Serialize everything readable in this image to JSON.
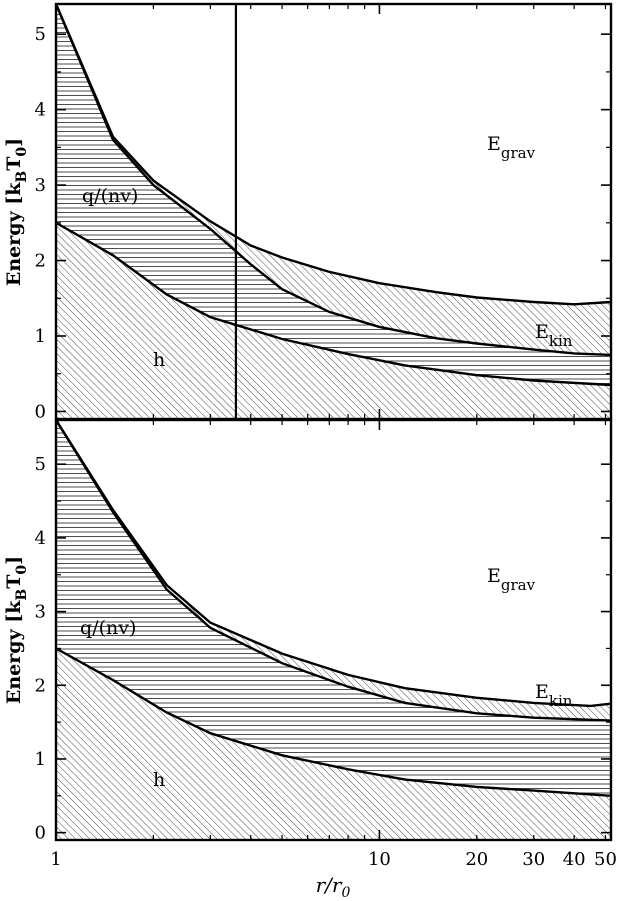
{
  "chart_data": [
    {
      "type": "area",
      "panel": "top",
      "ylabel": "Energy [kBT0]",
      "ylabel_parts": {
        "main": "Energy [k",
        "sub1": "B",
        "mid": "T",
        "sub2": "0",
        "end": "]"
      },
      "xscale": "log",
      "xlim": [
        1,
        52
      ],
      "ylim": [
        -0.1,
        5.4
      ],
      "yticks": [
        0,
        1,
        2,
        3,
        4,
        5
      ],
      "ytick_labels": [
        "0",
        "1",
        "2",
        "3",
        "4",
        "5"
      ],
      "vertical_line_x": 3.6,
      "labels": {
        "h": "h",
        "q": "q/(nv)",
        "ekin": {
          "main": "E",
          "sub": "kin"
        },
        "egrav": {
          "main": "E",
          "sub": "grav"
        }
      },
      "series": [
        {
          "key": "h",
          "x": [
            1,
            1.5,
            2.2,
            3,
            5,
            8,
            12,
            20,
            30,
            52
          ],
          "values": [
            2.5,
            2.07,
            1.55,
            1.25,
            0.96,
            0.76,
            0.61,
            0.48,
            0.41,
            0.35
          ]
        },
        {
          "key": "q",
          "x": [
            1,
            1.5,
            2,
            3,
            4,
            5,
            7,
            10,
            15,
            20,
            30,
            40,
            52
          ],
          "values": [
            5.4,
            3.6,
            3.0,
            2.42,
            1.95,
            1.62,
            1.32,
            1.12,
            0.97,
            0.9,
            0.82,
            0.77,
            0.75
          ]
        },
        {
          "key": "ekin",
          "x": [
            1,
            1.5,
            2,
            3,
            4,
            5,
            7,
            10,
            15,
            20,
            30,
            40,
            52
          ],
          "values": [
            5.4,
            3.64,
            3.06,
            2.52,
            2.2,
            2.04,
            1.85,
            1.7,
            1.58,
            1.51,
            1.45,
            1.42,
            1.45
          ]
        }
      ]
    },
    {
      "type": "area",
      "panel": "bottom",
      "ylabel": "Energy [kBT0]",
      "ylabel_parts": {
        "main": "Energy [k",
        "sub1": "B",
        "mid": "T",
        "sub2": "0",
        "end": "]"
      },
      "xlabel": "r/r0",
      "xlabel_parts": {
        "main": "r/r",
        "sub": "0"
      },
      "xscale": "log",
      "xlim": [
        1,
        52
      ],
      "ylim": [
        -0.1,
        5.6
      ],
      "yticks": [
        0,
        1,
        2,
        3,
        4,
        5
      ],
      "ytick_labels": [
        "0",
        "1",
        "2",
        "3",
        "4",
        "5"
      ],
      "xticks": [
        1,
        10,
        20,
        30,
        40,
        50
      ],
      "xtick_labels": [
        "1",
        "10",
        "20",
        "30",
        "40",
        "50"
      ],
      "labels": {
        "h": "h",
        "q": "q/(nv)",
        "ekin": {
          "main": "E",
          "sub": "kin"
        },
        "egrav": {
          "main": "E",
          "sub": "grav"
        }
      },
      "series": [
        {
          "key": "h",
          "x": [
            1,
            1.5,
            2.2,
            3,
            5,
            8,
            12,
            20,
            30,
            52
          ],
          "values": [
            2.5,
            2.07,
            1.63,
            1.35,
            1.05,
            0.86,
            0.72,
            0.62,
            0.57,
            0.5
          ]
        },
        {
          "key": "q",
          "x": [
            1,
            1.5,
            2.2,
            3,
            5,
            8,
            12,
            20,
            30,
            52
          ],
          "values": [
            5.6,
            4.35,
            3.3,
            2.78,
            2.3,
            1.98,
            1.76,
            1.62,
            1.56,
            1.52
          ]
        },
        {
          "key": "ekin",
          "x": [
            1,
            1.5,
            2.2,
            3,
            5,
            8,
            12,
            20,
            30,
            45,
            52
          ],
          "values": [
            5.6,
            4.38,
            3.36,
            2.85,
            2.43,
            2.14,
            1.96,
            1.83,
            1.76,
            1.72,
            1.75
          ]
        }
      ]
    }
  ]
}
